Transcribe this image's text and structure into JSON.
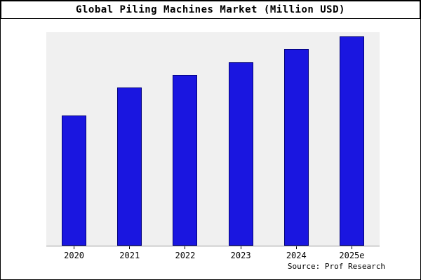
{
  "title": "Global Piling Machines Market (Million USD)",
  "source": "Source: Prof Research",
  "colors": {
    "bar_fill": "#1a16e0",
    "bar_border": "#00007a",
    "plot_background": "#f0f0f0",
    "frame_border": "#000000"
  },
  "chart_data": {
    "type": "bar",
    "title": "Global Piling Machines Market (Million USD)",
    "categories": [
      "2020",
      "2021",
      "2022",
      "2023",
      "2024",
      "2025e"
    ],
    "values": [
      61,
      74,
      80,
      86,
      92,
      98
    ],
    "xlabel": "",
    "ylabel": "",
    "ylim": [
      0,
      100
    ],
    "grid": false,
    "legend": false
  }
}
